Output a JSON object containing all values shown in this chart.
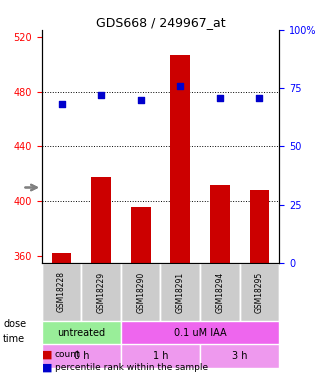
{
  "title": "GDS668 / 249967_at",
  "samples": [
    "GSM18228",
    "GSM18229",
    "GSM18290",
    "GSM18291",
    "GSM18294",
    "GSM18295"
  ],
  "bar_values": [
    362,
    418,
    396,
    507,
    412,
    408
  ],
  "scatter_values": [
    68,
    72,
    70,
    76,
    71,
    71
  ],
  "ylim_left": [
    355,
    525
  ],
  "ylim_right": [
    0,
    100
  ],
  "yticks_left": [
    360,
    400,
    440,
    480,
    520
  ],
  "yticks_right": [
    0,
    25,
    50,
    75,
    100
  ],
  "bar_color": "#cc0000",
  "scatter_color": "#0000cc",
  "dose_labels": [
    {
      "label": "untreated",
      "start": 0,
      "end": 2,
      "color": "#99ee99"
    },
    {
      "label": "0.1 uM IAA",
      "start": 2,
      "end": 6,
      "color": "#ee66ee"
    }
  ],
  "time_labels": [
    {
      "label": "0 h",
      "start": 0,
      "end": 2,
      "color": "#ee99ee"
    },
    {
      "label": "1 h",
      "start": 2,
      "end": 4,
      "color": "#ee99ee"
    },
    {
      "label": "3 h",
      "start": 4,
      "end": 6,
      "color": "#ee99ee"
    }
  ],
  "sample_bg_color": "#cccccc",
  "legend_items": [
    {
      "label": "count",
      "color": "#cc0000",
      "marker": "s"
    },
    {
      "label": "percentile rank within the sample",
      "color": "#0000cc",
      "marker": "s"
    }
  ],
  "dose_arrow_label": "dose",
  "time_arrow_label": "time"
}
